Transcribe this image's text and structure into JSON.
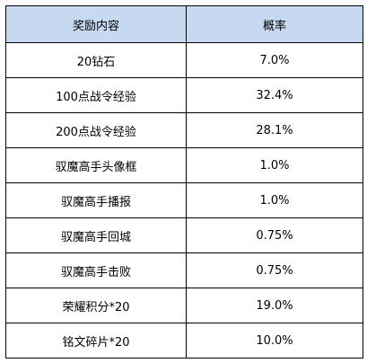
{
  "table": {
    "header_bg": "#c6d9f1",
    "columns": [
      "奖励内容",
      "概率"
    ],
    "rows": [
      {
        "reward": "20钻石",
        "prob": "7.0%"
      },
      {
        "reward": "100点战令经验",
        "prob": "32.4%"
      },
      {
        "reward": "200点战令经验",
        "prob": "28.1%"
      },
      {
        "reward": "驭魔高手头像框",
        "prob": "1.0%"
      },
      {
        "reward": "驭魔高手播报",
        "prob": "1.0%"
      },
      {
        "reward": "驭魔高手回城",
        "prob": "0.75%"
      },
      {
        "reward": "驭魔高手击败",
        "prob": "0.75%"
      },
      {
        "reward": "荣耀积分*20",
        "prob": "19.0%"
      },
      {
        "reward": "铭文碎片*20",
        "prob": "10.0%"
      }
    ]
  }
}
